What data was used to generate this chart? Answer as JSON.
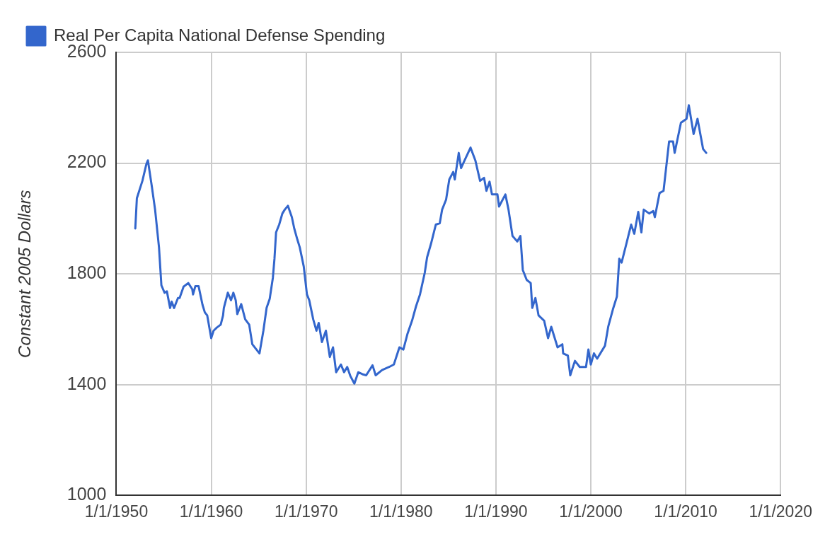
{
  "chart_data": {
    "type": "line",
    "ylabel": "Constant 2005 Dollars",
    "legend": "top",
    "grid": true,
    "marker": "none",
    "line_style": "solid",
    "xlim": [
      "1950-01-01",
      "2020-01-01"
    ],
    "xticks": [
      {
        "value": "1950-01-01",
        "label": "1/1/1950"
      },
      {
        "value": "1960-01-01",
        "label": "1/1/1960"
      },
      {
        "value": "1970-01-01",
        "label": "1/1/1970"
      },
      {
        "value": "1980-01-01",
        "label": "1/1/1980"
      },
      {
        "value": "1990-01-01",
        "label": "1/1/1990"
      },
      {
        "value": "2000-01-01",
        "label": "1/1/2000"
      },
      {
        "value": "2010-01-01",
        "label": "1/1/2010"
      },
      {
        "value": "2020-01-01",
        "label": "1/1/2020"
      }
    ],
    "ylim": [
      1000,
      2600
    ],
    "yticks": [
      1000,
      1400,
      1800,
      2200,
      2600
    ],
    "series": [
      {
        "name": "Real Per Capita National Defense Spending",
        "color": "#3366cc",
        "x": [
          "1952-01",
          "1952-03",
          "1952-10",
          "1953-03",
          "1953-05",
          "1953-10",
          "1954-02",
          "1954-07",
          "1954-10",
          "1955-02",
          "1955-05",
          "1955-09",
          "1955-11",
          "1956-02",
          "1956-07",
          "1956-09",
          "1957-02",
          "1957-08",
          "1958-01",
          "1958-02",
          "1958-05",
          "1958-09",
          "1959-02",
          "1959-05",
          "1959-08",
          "1960-01",
          "1960-04",
          "1960-08",
          "1961-01",
          "1961-04",
          "1961-05",
          "1961-10",
          "1962-02",
          "1962-05",
          "1962-08",
          "1962-10",
          "1963-03",
          "1963-08",
          "1964-01",
          "1964-05",
          "1965-02",
          "1965-07",
          "1965-11",
          "1966-03",
          "1966-07",
          "1966-09",
          "1966-11",
          "1967-03",
          "1967-07",
          "1967-10",
          "1968-02",
          "1968-07",
          "1968-10",
          "1969-02",
          "1969-05",
          "1969-10",
          "1970-02",
          "1970-05",
          "1970-10",
          "1971-02",
          "1971-05",
          "1971-09",
          "1972-02",
          "1972-07",
          "1972-11",
          "1973-03",
          "1973-09",
          "1974-01",
          "1974-05",
          "1974-09",
          "1975-02",
          "1975-07",
          "1976-01",
          "1976-05",
          "1977-01",
          "1977-05",
          "1978-01",
          "1978-10",
          "1979-04",
          "1979-11",
          "1980-04",
          "1980-09",
          "1981-03",
          "1981-08",
          "1982-01",
          "1982-07",
          "1982-10",
          "1983-03",
          "1983-09",
          "1984-02",
          "1984-05",
          "1984-10",
          "1985-02",
          "1985-07",
          "1985-09",
          "1986-02",
          "1986-05",
          "1986-08",
          "1987-05",
          "1987-11",
          "1988-05",
          "1988-10",
          "1989-01",
          "1989-05",
          "1989-08",
          "1990-03",
          "1990-05",
          "1991-01",
          "1991-05",
          "1991-10",
          "1992-04",
          "1992-08",
          "1992-11",
          "1993-04",
          "1993-09",
          "1993-11",
          "1994-03",
          "1994-07",
          "1995-02",
          "1995-07",
          "1995-11",
          "1996-07",
          "1997-01",
          "1997-02",
          "1997-08",
          "1997-11",
          "1998-05",
          "1998-11",
          "1999-07",
          "1999-10",
          "2000-01",
          "2000-05",
          "2000-09",
          "2001-07",
          "2001-11",
          "2002-05",
          "2002-10",
          "2003-01",
          "2003-04",
          "2003-10",
          "2004-04",
          "2004-08",
          "2005-01",
          "2005-05",
          "2005-08",
          "2006-03",
          "2006-08",
          "2006-10",
          "2007-04",
          "2007-09",
          "2008-04",
          "2008-09",
          "2008-11",
          "2009-07",
          "2010-02",
          "2010-05",
          "2010-11",
          "2011-04",
          "2011-11",
          "2012-03"
        ],
        "values": [
          1964,
          2073,
          2136,
          2196,
          2210,
          2114,
          2032,
          1896,
          1759,
          1732,
          1737,
          1677,
          1700,
          1677,
          1713,
          1713,
          1754,
          1767,
          1745,
          1726,
          1756,
          1756,
          1688,
          1661,
          1650,
          1568,
          1595,
          1606,
          1617,
          1650,
          1677,
          1732,
          1705,
          1732,
          1705,
          1655,
          1691,
          1636,
          1617,
          1546,
          1513,
          1595,
          1677,
          1710,
          1786,
          1855,
          1950,
          1978,
          2018,
          2032,
          2046,
          2005,
          1964,
          1923,
          1896,
          1827,
          1726,
          1705,
          1636,
          1595,
          1623,
          1554,
          1595,
          1500,
          1535,
          1445,
          1473,
          1445,
          1464,
          1431,
          1404,
          1445,
          1437,
          1434,
          1470,
          1434,
          1453,
          1464,
          1473,
          1535,
          1527,
          1582,
          1631,
          1683,
          1726,
          1803,
          1860,
          1909,
          1978,
          1983,
          2032,
          2068,
          2141,
          2168,
          2141,
          2237,
          2182,
          2201,
          2256,
          2210,
          2136,
          2147,
          2100,
          2133,
          2087,
          2087,
          2043,
          2087,
          2032,
          1937,
          1917,
          1937,
          1814,
          1778,
          1767,
          1677,
          1713,
          1650,
          1631,
          1568,
          1609,
          1535,
          1546,
          1513,
          1505,
          1434,
          1486,
          1464,
          1464,
          1527,
          1473,
          1513,
          1494,
          1541,
          1609,
          1672,
          1718,
          1855,
          1841,
          1909,
          1978,
          1945,
          2024,
          1950,
          2032,
          2018,
          2027,
          2005,
          2092,
          2100,
          2278,
          2278,
          2237,
          2346,
          2360,
          2409,
          2305,
          2360,
          2251,
          2237
        ]
      }
    ]
  }
}
